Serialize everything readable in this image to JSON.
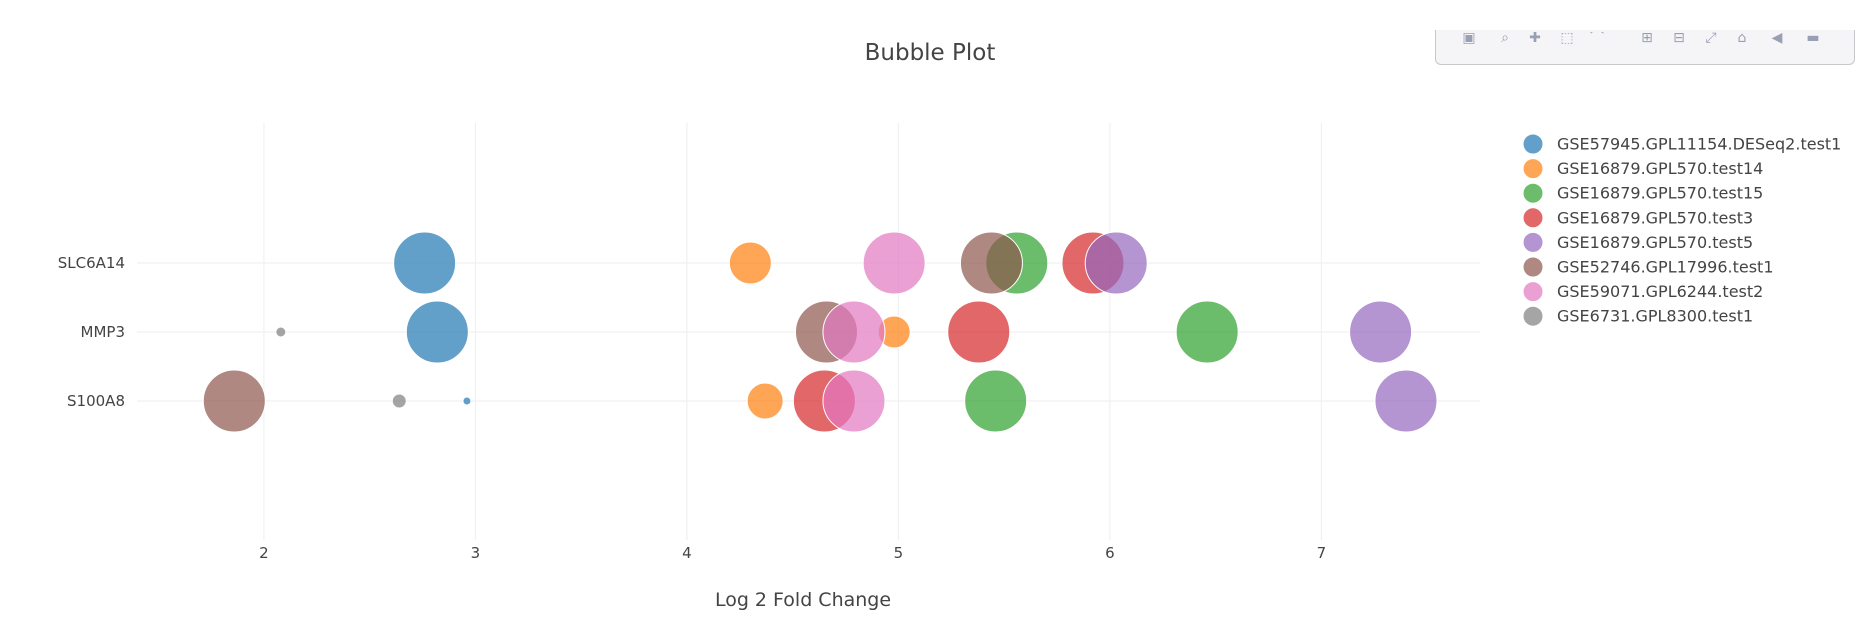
{
  "chart_data": {
    "type": "scatter",
    "title": "Bubble Plot",
    "xlabel": "Log 2 Fold Change",
    "ylabel": "",
    "xlim": [
      1.4,
      7.75
    ],
    "x_ticks": [
      2,
      3,
      4,
      5,
      6,
      7
    ],
    "categories": [
      "SLC6A14",
      "MMP3",
      "S100A8"
    ],
    "grid": true,
    "legend_position": "right",
    "series": [
      {
        "name": "GSE57945.GPL11154.DESeq2.test1",
        "color": "#1f77b4",
        "points": [
          {
            "y": "SLC6A14",
            "x": 2.76,
            "size": 31
          },
          {
            "y": "MMP3",
            "x": 2.82,
            "size": 31
          },
          {
            "y": "S100A8",
            "x": 2.96,
            "size": 4
          }
        ]
      },
      {
        "name": "GSE16879.GPL570.test14",
        "color": "#ff7f0e",
        "points": [
          {
            "y": "SLC6A14",
            "x": 4.3,
            "size": 21
          },
          {
            "y": "MMP3",
            "x": 4.98,
            "size": 16
          },
          {
            "y": "S100A8",
            "x": 4.37,
            "size": 18
          }
        ]
      },
      {
        "name": "GSE16879.GPL570.test15",
        "color": "#2ca02c",
        "points": [
          {
            "y": "SLC6A14",
            "x": 5.56,
            "size": 31
          },
          {
            "y": "MMP3",
            "x": 6.46,
            "size": 31
          },
          {
            "y": "S100A8",
            "x": 5.46,
            "size": 31
          }
        ]
      },
      {
        "name": "GSE16879.GPL570.test3",
        "color": "#d62728",
        "points": [
          {
            "y": "SLC6A14",
            "x": 5.92,
            "size": 31
          },
          {
            "y": "MMP3",
            "x": 5.38,
            "size": 31
          },
          {
            "y": "S100A8",
            "x": 4.65,
            "size": 31
          }
        ]
      },
      {
        "name": "GSE16879.GPL570.test5",
        "color": "#9467bd",
        "points": [
          {
            "y": "SLC6A14",
            "x": 6.03,
            "size": 31
          },
          {
            "y": "MMP3",
            "x": 7.28,
            "size": 31
          },
          {
            "y": "S100A8",
            "x": 7.4,
            "size": 31
          }
        ]
      },
      {
        "name": "GSE52746.GPL17996.test1",
        "color": "#8c564b",
        "points": [
          {
            "y": "SLC6A14",
            "x": 5.44,
            "size": 31
          },
          {
            "y": "MMP3",
            "x": 4.66,
            "size": 31
          },
          {
            "y": "S100A8",
            "x": 1.86,
            "size": 31
          }
        ]
      },
      {
        "name": "GSE59071.GPL6244.test2",
        "color": "#e377c2",
        "points": [
          {
            "y": "SLC6A14",
            "x": 4.98,
            "size": 31
          },
          {
            "y": "MMP3",
            "x": 4.79,
            "size": 31
          },
          {
            "y": "S100A8",
            "x": 4.79,
            "size": 31
          }
        ]
      },
      {
        "name": "GSE6731.GPL8300.test1",
        "color": "#7f7f7f",
        "points": [
          {
            "y": "MMP3",
            "x": 2.08,
            "size": 5
          },
          {
            "y": "S100A8",
            "x": 2.64,
            "size": 7
          }
        ]
      }
    ]
  },
  "modebar": {
    "icons": [
      "camera-icon",
      "zoom-icon",
      "pan-icon",
      "box-select-icon",
      "lasso-icon",
      "zoom-in-icon",
      "zoom-out-icon",
      "autoscale-icon",
      "home-icon",
      "spike-lines-icon",
      "hover-compare-icon"
    ]
  }
}
